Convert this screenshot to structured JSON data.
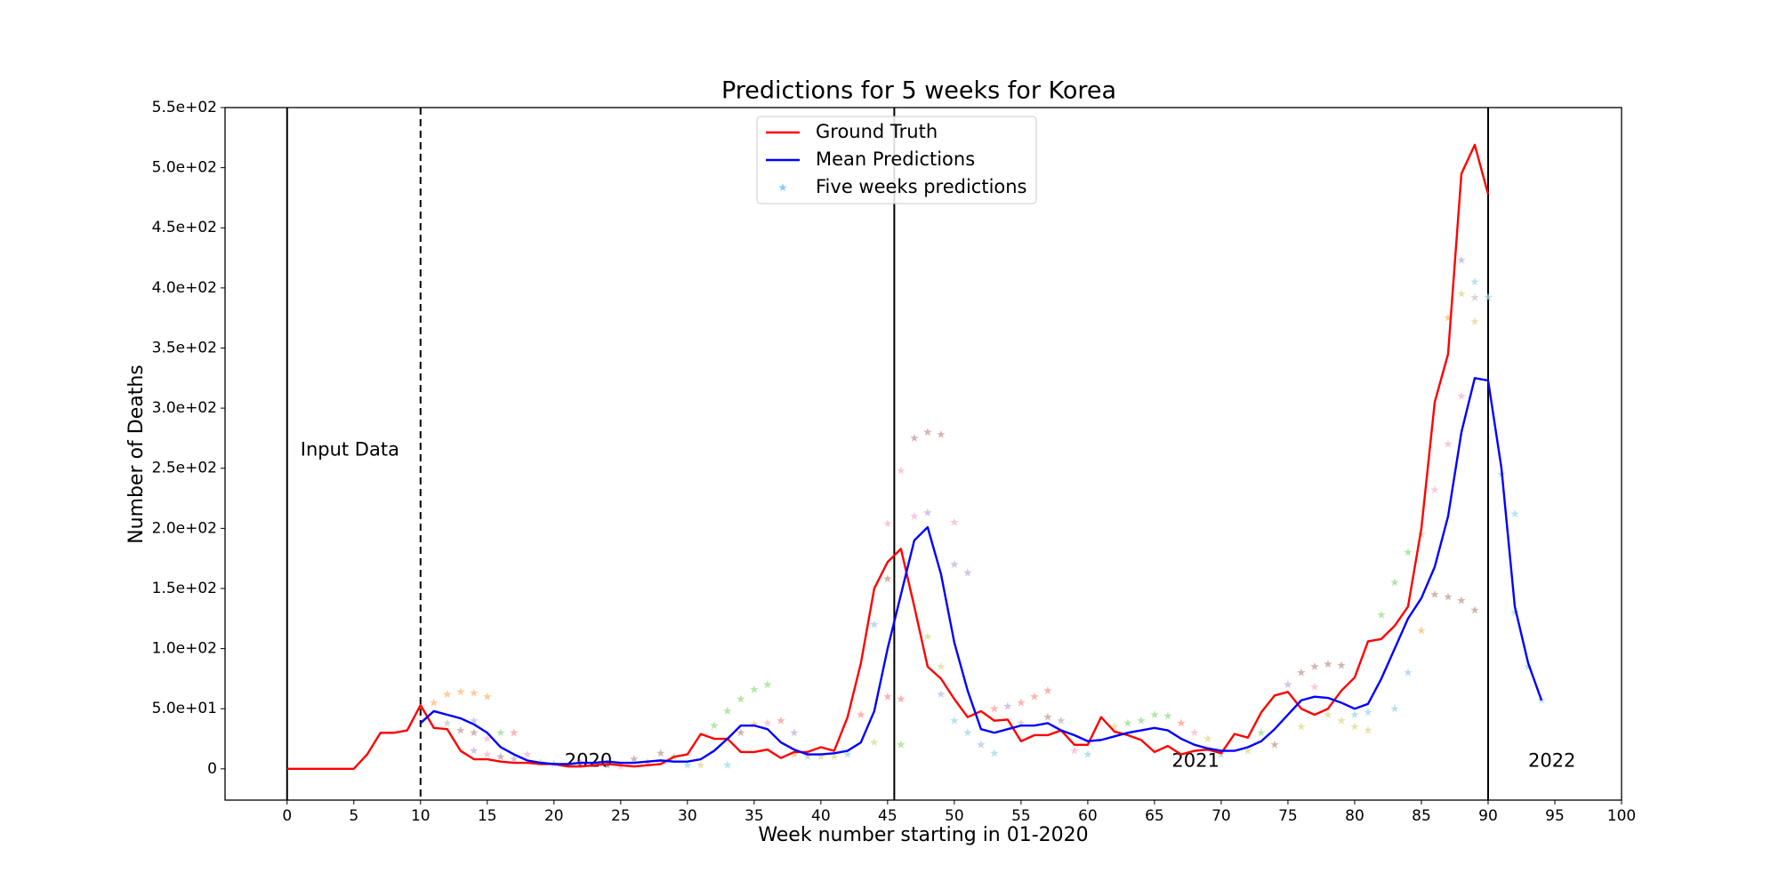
{
  "chart_data": {
    "type": "line",
    "title": "Predictions for 5 weeks for Korea",
    "x_label": "Week number starting in 01-2020",
    "y_label": "Number of Deaths",
    "xlim": [
      -4.65,
      100
    ],
    "ylim": [
      -26,
      550
    ],
    "xticks": [
      0,
      5,
      10,
      15,
      20,
      25,
      30,
      35,
      40,
      45,
      50,
      55,
      60,
      65,
      70,
      75,
      80,
      85,
      90,
      95,
      100
    ],
    "yticks": [
      0,
      {
        "value": 50,
        "label": "5.0e+01"
      },
      {
        "value": 100,
        "label": "1.0e+02"
      },
      {
        "value": 150,
        "label": "1.5e+02"
      },
      {
        "value": 200,
        "label": "2.0e+02"
      },
      {
        "value": 250,
        "label": "2.5e+02"
      },
      {
        "value": 300,
        "label": "3.0e+02"
      },
      {
        "value": 350,
        "label": "3.5e+02"
      },
      {
        "value": 400,
        "label": "4.0e+02"
      },
      {
        "value": 450,
        "label": "4.5e+02"
      },
      {
        "value": 500,
        "label": "5.0e+02"
      },
      {
        "value": 550,
        "label": "5.5e+02"
      }
    ],
    "grid": false,
    "legend": "upper center",
    "vlines": [
      {
        "x": 0
      },
      {
        "x": 10,
        "dashed": true
      },
      {
        "x": 45.5
      },
      {
        "x": 90
      }
    ],
    "annotations": [
      {
        "text": "Input Data",
        "x": 1,
        "y": 265
      },
      {
        "text": "2020",
        "x": 20.8,
        "y": 6
      },
      {
        "text": "2021",
        "x": 66.3,
        "y": 6
      },
      {
        "text": "2022",
        "x": 93,
        "y": 6
      }
    ],
    "series": [
      {
        "name": "Ground Truth",
        "color": "#ff0000",
        "x": [
          0,
          1,
          2,
          3,
          4,
          5,
          6,
          7,
          8,
          9,
          10,
          11,
          12,
          13,
          14,
          15,
          16,
          17,
          18,
          19,
          20,
          21,
          22,
          23,
          24,
          25,
          26,
          27,
          28,
          29,
          30,
          31,
          32,
          33,
          34,
          35,
          36,
          37,
          38,
          39,
          40,
          41,
          42,
          43,
          44,
          45,
          46,
          47,
          48,
          49,
          50,
          51,
          52,
          53,
          54,
          55,
          56,
          57,
          58,
          59,
          60,
          61,
          62,
          63,
          64,
          65,
          66,
          67,
          68,
          69,
          70,
          71,
          72,
          73,
          74,
          75,
          76,
          77,
          78,
          79,
          80,
          81,
          82,
          83,
          84,
          85,
          86,
          87,
          88,
          89,
          90
        ],
        "values": [
          0,
          0,
          0,
          0,
          0,
          0,
          12,
          30,
          30,
          32,
          53,
          34,
          33,
          15,
          8,
          8,
          6,
          5,
          5,
          4,
          4,
          2,
          2,
          3,
          4,
          3,
          2,
          3,
          4,
          10,
          12,
          29,
          25,
          25,
          14,
          14,
          16,
          9,
          14,
          14,
          18,
          15,
          43,
          88,
          150,
          172,
          183,
          135,
          85,
          75,
          58,
          43,
          48,
          40,
          41,
          23,
          28,
          28,
          32,
          20,
          20,
          43,
          31,
          28,
          24,
          14,
          19,
          12,
          15,
          16,
          13,
          29,
          26,
          47,
          61,
          64,
          50,
          45,
          50,
          65,
          76,
          106,
          108,
          119,
          135,
          200,
          305,
          345,
          495,
          519,
          478
        ]
      },
      {
        "name": "Mean Predictions",
        "color": "#0000ff",
        "x": [
          10,
          11,
          12,
          13,
          14,
          15,
          16,
          17,
          18,
          19,
          20,
          21,
          22,
          23,
          24,
          25,
          26,
          27,
          28,
          29,
          30,
          31,
          32,
          33,
          34,
          35,
          36,
          37,
          38,
          39,
          40,
          41,
          42,
          43,
          44,
          45,
          46,
          47,
          48,
          49,
          50,
          51,
          52,
          53,
          54,
          55,
          56,
          57,
          58,
          59,
          60,
          61,
          62,
          63,
          64,
          65,
          66,
          67,
          68,
          69,
          70,
          71,
          72,
          73,
          74,
          75,
          76,
          77,
          78,
          79,
          80,
          81,
          82,
          83,
          84,
          85,
          86,
          87,
          88,
          89,
          90,
          91,
          92,
          93,
          94
        ],
        "values": [
          38,
          48,
          45,
          42,
          37,
          30,
          18,
          12,
          7,
          5,
          4,
          4,
          5,
          5,
          6,
          5,
          5,
          6,
          7,
          6,
          6,
          8,
          15,
          25,
          36,
          36,
          33,
          22,
          16,
          12,
          12,
          13,
          15,
          22,
          48,
          100,
          145,
          190,
          201,
          162,
          105,
          65,
          33,
          30,
          33,
          36,
          36,
          38,
          32,
          28,
          23,
          24,
          27,
          30,
          32,
          34,
          32,
          25,
          20,
          17,
          15,
          15,
          18,
          23,
          33,
          45,
          57,
          60,
          59,
          55,
          50,
          54,
          75,
          100,
          125,
          142,
          168,
          210,
          280,
          325,
          323,
          250,
          135,
          88,
          57
        ]
      },
      {
        "name": "Five weeks predictions",
        "color": "#87cefa",
        "marker": "star",
        "x": [
          11,
          12,
          13,
          14,
          15,
          12,
          13,
          14,
          15,
          16,
          17,
          14,
          14,
          15,
          16,
          17,
          18,
          19,
          20,
          22,
          24,
          25,
          26,
          27,
          28,
          29,
          30,
          31,
          32,
          33,
          34,
          35,
          36,
          33,
          34,
          35,
          36,
          37,
          38,
          38,
          39,
          40,
          41,
          42,
          43,
          44,
          44,
          45,
          45,
          45,
          46,
          46,
          46,
          47,
          47,
          48,
          48,
          48,
          49,
          49,
          49,
          50,
          50,
          50,
          51,
          51,
          52,
          53,
          53,
          54,
          55,
          56,
          57,
          55,
          57,
          58,
          59,
          60,
          62,
          63,
          64,
          65,
          66,
          67,
          68,
          69,
          70,
          72,
          73,
          74,
          75,
          76,
          77,
          78,
          79,
          77,
          76,
          78,
          79,
          80,
          81,
          80,
          81,
          82,
          83,
          84,
          85,
          83,
          84,
          85,
          86,
          87,
          88,
          89,
          86,
          87,
          88,
          87,
          88,
          88,
          89,
          89,
          89,
          90,
          91,
          92,
          92,
          93,
          94
        ],
        "values": [
          55,
          62,
          64,
          63,
          60,
          38,
          32,
          30,
          25,
          30,
          30,
          40,
          15,
          12,
          10,
          8,
          12,
          5,
          4,
          5,
          3,
          2,
          8,
          5,
          13,
          10,
          3,
          3,
          36,
          48,
          58,
          66,
          70,
          3,
          30,
          37,
          38,
          40,
          30,
          12,
          10,
          10,
          10,
          12,
          45,
          120,
          22,
          204,
          158,
          60,
          248,
          58,
          20,
          275,
          210,
          280,
          213,
          110,
          278,
          85,
          62,
          205,
          170,
          40,
          163,
          30,
          20,
          50,
          13,
          52,
          55,
          60,
          65,
          38,
          43,
          40,
          15,
          12,
          35,
          38,
          40,
          45,
          44,
          38,
          30,
          25,
          12,
          15,
          30,
          20,
          70,
          80,
          85,
          87,
          86,
          68,
          35,
          45,
          40,
          35,
          32,
          45,
          47,
          128,
          155,
          180,
          195,
          50,
          80,
          115,
          145,
          143,
          140,
          132,
          232,
          270,
          310,
          375,
          395,
          423,
          405,
          372,
          392,
          392,
          245,
          212,
          130,
          85,
          57
        ],
        "point_colors": [
          "#ffbb78",
          "#ffbb78",
          "#ffbb78",
          "#ffbb78",
          "#ffbb78",
          "#c7c7c7",
          "#c49c94",
          "#c49c94",
          "#f7b6d2",
          "#98df8a",
          "#ff9896",
          "#aec7e8",
          "#c5b0d5",
          "#f7b6d2",
          "#c49c94",
          "#c5b0d5",
          "#f7b6d2",
          "#98df8a",
          "#aec7e8",
          "#ff9896",
          "#c5b0d5",
          "#f7b6d2",
          "#c49c94",
          "#ff9896",
          "#c49c94",
          "#98df8a",
          "#9edae5",
          "#dbdb8d",
          "#98df8a",
          "#98df8a",
          "#98df8a",
          "#98df8a",
          "#98df8a",
          "#9edae5",
          "#c49c94",
          "#ffbb78",
          "#f7b6d2",
          "#ff9896",
          "#c5b0d5",
          "#ffbb78",
          "#c7c7c7",
          "#dbdb8d",
          "#dbdb8d",
          "#9edae5",
          "#ff9896",
          "#aec7e8",
          "#dbdb8d",
          "#f7b6d2",
          "#c49c94",
          "#ff9896",
          "#f7b6d2",
          "#ff9896",
          "#98df8a",
          "#c49c94",
          "#f7b6d2",
          "#c49c94",
          "#c5b0d5",
          "#dbdb8d",
          "#c49c94",
          "#dbdb8d",
          "#aec7e8",
          "#f7b6d2",
          "#c5b0d5",
          "#9edae5",
          "#c5b0d5",
          "#9edae5",
          "#aec7e8",
          "#ff9896",
          "#9edae5",
          "#c5b0d5",
          "#ff9896",
          "#ff9896",
          "#ff9896",
          "#c7c7c7",
          "#c49c94",
          "#c5b0d5",
          "#f7b6d2",
          "#9edae5",
          "#dbdb8d",
          "#98df8a",
          "#98df8a",
          "#98df8a",
          "#98df8a",
          "#ff9896",
          "#f7b6d2",
          "#dbdb8d",
          "#9edae5",
          "#dbdb8d",
          "#98df8a",
          "#c49c94",
          "#c5b0d5",
          "#c49c94",
          "#c49c94",
          "#c49c94",
          "#c49c94",
          "#f7b6d2",
          "#dbdb8d",
          "#dbdb8d",
          "#dbdb8d",
          "#dbdb8d",
          "#dbdb8d",
          "#9edae5",
          "#9edae5",
          "#98df8a",
          "#98df8a",
          "#98df8a",
          "#98df8a",
          "#9edae5",
          "#aec7e8",
          "#ffbb78",
          "#c49c94",
          "#c49c94",
          "#c49c94",
          "#c49c94",
          "#f7b6d2",
          "#f7b6d2",
          "#f7b6d2",
          "#ffbb78",
          "#dbdb8d",
          "#c5b0d5",
          "#9edae5",
          "#dbdb8d",
          "#c7c7c7",
          "#9edae5",
          "#9edae5",
          "#9edae5",
          "#9edae5",
          "#9edae5",
          "#9edae5"
        ]
      }
    ]
  }
}
